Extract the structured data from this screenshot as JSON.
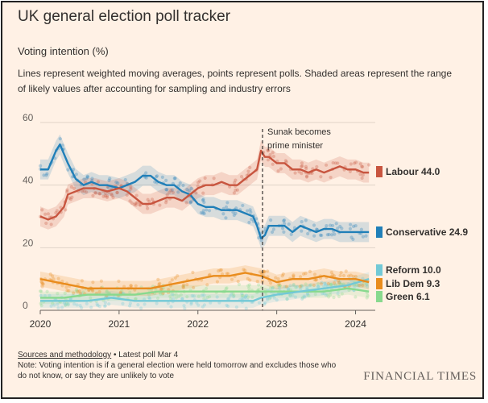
{
  "header": {
    "title": "UK general election poll tracker",
    "subtitle": "Voting intention (%)",
    "description": "Lines represent weighted moving averages, points represent polls. Shaded areas represent the range of likely values after accounting for sampling and industry errors"
  },
  "footer": {
    "methodology_link": "Sources and methodology",
    "latest_poll": " • Latest poll Mar 4",
    "note": "Note: Voting intention is if a general election were held tomorrow and excludes those who do not know, or say they are unlikely to vote",
    "logo_text": "FINANCIAL TIMES"
  },
  "chart_data": {
    "type": "line",
    "title": "UK general election poll tracker",
    "ylabel": "Voting intention (%)",
    "ylim": [
      0,
      60
    ],
    "yticks": [
      "0",
      "20",
      "40",
      "60"
    ],
    "xlim": [
      2020.0,
      2024.25
    ],
    "xticks": [
      {
        "value": 2020,
        "label": "2020"
      },
      {
        "value": 2021,
        "label": "2021"
      },
      {
        "value": 2022,
        "label": "2022"
      },
      {
        "value": 2023,
        "label": "2023"
      },
      {
        "value": 2024,
        "label": "2024"
      }
    ],
    "grid": "horizontal",
    "annotation": {
      "x": 2022.82,
      "line1": "Sunak becomes",
      "line2": "prime minister"
    },
    "series": [
      {
        "name": "Labour",
        "label": "Labour 44.0",
        "latest": 44.0,
        "color": "#c8553f",
        "x": [
          2020.0,
          2020.1,
          2020.2,
          2020.3,
          2020.35,
          2020.45,
          2020.55,
          2020.7,
          2020.85,
          2021.0,
          2021.1,
          2021.2,
          2021.3,
          2021.4,
          2021.5,
          2021.6,
          2021.7,
          2021.8,
          2021.9,
          2022.0,
          2022.1,
          2022.2,
          2022.3,
          2022.4,
          2022.5,
          2022.6,
          2022.7,
          2022.75,
          2022.8,
          2022.85,
          2022.9,
          2023.0,
          2023.1,
          2023.2,
          2023.3,
          2023.4,
          2023.5,
          2023.6,
          2023.7,
          2023.8,
          2023.9,
          2024.0,
          2024.1,
          2024.17
        ],
        "y": [
          30,
          29,
          30,
          33,
          37,
          38,
          39,
          39,
          38,
          39,
          38,
          36,
          34,
          34,
          35,
          36,
          36,
          35,
          37,
          39,
          40,
          40,
          41,
          40,
          40,
          42,
          44,
          45,
          51,
          49,
          49,
          47,
          47,
          45,
          45,
          44,
          45,
          44,
          45,
          46,
          45,
          45,
          44,
          44
        ]
      },
      {
        "name": "Conservative",
        "label": "Conservative 24.9",
        "latest": 24.9,
        "color": "#207fb8",
        "x": [
          2020.0,
          2020.1,
          2020.2,
          2020.25,
          2020.35,
          2020.45,
          2020.55,
          2020.65,
          2020.75,
          2020.85,
          2021.0,
          2021.1,
          2021.2,
          2021.3,
          2021.4,
          2021.5,
          2021.6,
          2021.7,
          2021.8,
          2021.9,
          2022.0,
          2022.1,
          2022.2,
          2022.3,
          2022.4,
          2022.5,
          2022.6,
          2022.7,
          2022.75,
          2022.8,
          2022.85,
          2022.9,
          2023.0,
          2023.1,
          2023.2,
          2023.3,
          2023.4,
          2023.5,
          2023.6,
          2023.7,
          2023.8,
          2023.9,
          2024.0,
          2024.1,
          2024.17
        ],
        "y": [
          45,
          45,
          51,
          53,
          47,
          42,
          40,
          41,
          40,
          40,
          39,
          40,
          41,
          43,
          43,
          41,
          40,
          40,
          38,
          37,
          34,
          33,
          33,
          32,
          32,
          32,
          31,
          30,
          27,
          23,
          24,
          27,
          27,
          27,
          25,
          27,
          26,
          25,
          26,
          26,
          25,
          25,
          25,
          25,
          25
        ]
      },
      {
        "name": "Reform",
        "label": "Reform 10.0",
        "latest": 10.0,
        "color": "#72c9d6",
        "x": [
          2020.0,
          2020.3,
          2020.6,
          2020.9,
          2021.2,
          2021.5,
          2021.8,
          2022.1,
          2022.4,
          2022.7,
          2022.8,
          2023.0,
          2023.3,
          2023.6,
          2023.9,
          2024.17
        ],
        "y": [
          3,
          3,
          3,
          4,
          3,
          3,
          3,
          3,
          3,
          3,
          4,
          5,
          6,
          7,
          8,
          10
        ]
      },
      {
        "name": "Lib Dem",
        "label": "Lib Dem 9.3",
        "latest": 9.3,
        "color": "#e98c1d",
        "x": [
          2020.0,
          2020.2,
          2020.4,
          2020.6,
          2020.8,
          2021.0,
          2021.2,
          2021.4,
          2021.6,
          2021.8,
          2022.0,
          2022.2,
          2022.4,
          2022.6,
          2022.8,
          2023.0,
          2023.2,
          2023.4,
          2023.6,
          2023.8,
          2024.0,
          2024.17
        ],
        "y": [
          10,
          9,
          8,
          7,
          7,
          7,
          7,
          7,
          8,
          9,
          10,
          11,
          11,
          12,
          11,
          9,
          10,
          10,
          11,
          10,
          10,
          9
        ]
      },
      {
        "name": "Green",
        "label": "Green 6.1",
        "latest": 6.1,
        "color": "#88d98e",
        "x": [
          2020.0,
          2020.3,
          2020.6,
          2020.9,
          2021.2,
          2021.5,
          2021.8,
          2022.1,
          2022.4,
          2022.7,
          2023.0,
          2023.3,
          2023.6,
          2023.9,
          2024.17
        ],
        "y": [
          4,
          4,
          5,
          5,
          5,
          6,
          6,
          6,
          6,
          6,
          6,
          6,
          6,
          7,
          6
        ]
      }
    ]
  }
}
